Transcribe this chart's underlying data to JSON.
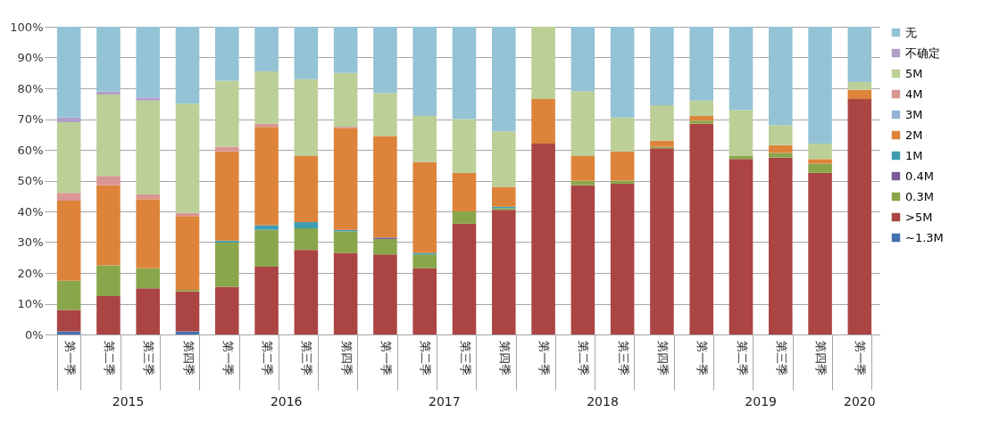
{
  "chart_data": {
    "type": "bar",
    "stacked": true,
    "categories": [
      "第一季",
      "第二季",
      "第三季",
      "第四季",
      "第一季",
      "第二季",
      "第三季",
      "第四季",
      "第一季",
      "第二季",
      "第三季",
      "第四季",
      "第一季",
      "第二季",
      "第三季",
      "第四季",
      "第一季",
      "第二季",
      "第三季",
      "第四季",
      "第一季"
    ],
    "annotations": [
      "2015",
      "2016",
      "2017",
      "2018",
      "2019",
      "2020"
    ],
    "series": [
      {
        "name": "~1.3M",
        "color": "#4672b0",
        "values": [
          1,
          0,
          0,
          1,
          0,
          0,
          0,
          0,
          0,
          0,
          0,
          0,
          0,
          0,
          0,
          0,
          0,
          0,
          0,
          0,
          0
        ]
      },
      {
        "name": ">5M",
        "color": "#ab4543",
        "values": [
          7,
          12.5,
          15,
          13,
          15.5,
          22,
          27.5,
          26.5,
          26,
          21.5,
          36,
          40.5,
          62,
          48.5,
          49,
          60.5,
          68.5,
          57,
          57.5,
          52.5,
          76.5
        ]
      },
      {
        "name": "0.3M",
        "color": "#8aa64a",
        "values": [
          9.5,
          10,
          6.5,
          0.5,
          14.5,
          12,
          7,
          7,
          5,
          4.5,
          4,
          0.5,
          0,
          1.5,
          1,
          0.5,
          1,
          1,
          1.5,
          3,
          0
        ]
      },
      {
        "name": "0.4M",
        "color": "#7a5c9a",
        "values": [
          0,
          0,
          0,
          0,
          0,
          0,
          0,
          0,
          0.5,
          0,
          0,
          0,
          0,
          0,
          0,
          0,
          0,
          0,
          0,
          0,
          0
        ]
      },
      {
        "name": "1M",
        "color": "#3e9bb0",
        "values": [
          0,
          0,
          0,
          0,
          0.5,
          1.5,
          2,
          0.5,
          0,
          0.5,
          0,
          0.5,
          0,
          0,
          0,
          0,
          0,
          0,
          0,
          0,
          0
        ]
      },
      {
        "name": "2M",
        "color": "#dd843a",
        "values": [
          26,
          26,
          22.5,
          24,
          29,
          32,
          21.5,
          33,
          33,
          29.5,
          12.5,
          6.5,
          14.5,
          8,
          9.5,
          2,
          1.5,
          0,
          2.5,
          1.5,
          3
        ]
      },
      {
        "name": "3M",
        "color": "#95b3d7",
        "values": [
          0,
          0,
          0,
          0,
          0,
          0,
          0,
          0,
          0,
          0,
          0,
          0,
          0,
          0,
          0,
          0,
          0,
          0,
          0,
          0,
          0
        ]
      },
      {
        "name": "4M",
        "color": "#d99694",
        "values": [
          2.5,
          3,
          1.5,
          1,
          1.5,
          1,
          0,
          0.5,
          0,
          0,
          0,
          0,
          0,
          0,
          0,
          0,
          0,
          0,
          0,
          0,
          0
        ]
      },
      {
        "name": "5M",
        "color": "#bccf97",
        "values": [
          23,
          26.5,
          30.5,
          35.5,
          21.5,
          17,
          25,
          17.5,
          14,
          15,
          17.5,
          18,
          23.5,
          21,
          11,
          11.5,
          5,
          15,
          6.5,
          5,
          2.5
        ]
      },
      {
        "name": "不确定",
        "color": "#b0a0c8",
        "values": [
          1.5,
          1,
          1,
          0,
          0,
          0,
          0,
          0,
          0,
          0,
          0,
          0,
          0,
          0,
          0,
          0,
          0,
          0,
          0,
          0,
          0
        ]
      },
      {
        "name": "无",
        "color": "#93c3d5",
        "values": [
          29.5,
          21,
          23,
          25,
          17.5,
          14.5,
          17,
          15,
          21.5,
          29,
          30,
          34,
          0,
          21,
          29.5,
          25.5,
          24,
          27,
          32,
          38,
          18
        ]
      }
    ],
    "ylim": [
      0,
      100
    ],
    "yticks": [
      {
        "value": 0,
        "label": "0%"
      },
      {
        "value": 10,
        "label": "10%"
      },
      {
        "value": 20,
        "label": "20%"
      },
      {
        "value": 30,
        "label": "30%"
      },
      {
        "value": 40,
        "label": "40%"
      },
      {
        "value": 50,
        "label": "50%"
      },
      {
        "value": 60,
        "label": "60%"
      },
      {
        "value": 70,
        "label": "70%"
      },
      {
        "value": 80,
        "label": "80%"
      },
      {
        "value": 90,
        "label": "90%"
      },
      {
        "value": 100,
        "label": "100%"
      }
    ],
    "grid": "y",
    "legend": "right"
  }
}
